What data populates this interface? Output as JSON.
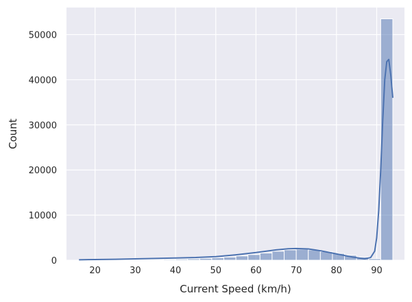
{
  "chart_data": {
    "type": "bar",
    "xlabel": "Current Speed (km/h)",
    "ylabel": "Count",
    "xlim": [
      12.9,
      96.9
    ],
    "ylim": [
      0,
      56000
    ],
    "x_ticks": [
      20,
      30,
      40,
      50,
      60,
      70,
      80,
      90
    ],
    "y_ticks": [
      0,
      10000,
      20000,
      30000,
      40000,
      50000
    ],
    "grid": true,
    "colors": {
      "background": "#eaeaf2",
      "bar_fill": "#4c72b0",
      "kde_line": "#4c72b0",
      "grid": "#ffffff"
    },
    "bins": {
      "edges": [
        16.0,
        19.0,
        22.0,
        25.0,
        28.0,
        31.0,
        34.0,
        37.0,
        40.0,
        43.0,
        46.0,
        49.0,
        52.0,
        55.0,
        58.0,
        61.0,
        64.0,
        67.0,
        70.0,
        73.0,
        76.0,
        79.0,
        82.0,
        85.0,
        88.0,
        91.0,
        94.0
      ],
      "counts": [
        50,
        40,
        60,
        80,
        100,
        130,
        160,
        200,
        250,
        320,
        420,
        550,
        700,
        950,
        1250,
        1600,
        2000,
        2300,
        2450,
        2300,
        1900,
        1500,
        1100,
        700,
        350,
        53500
      ]
    },
    "kde": {
      "x": [
        16,
        20,
        25,
        30,
        35,
        40,
        45,
        50,
        55,
        60,
        65,
        68,
        70,
        73,
        76,
        80,
        84,
        87,
        88.5,
        89.5,
        90,
        90.5,
        91,
        91.5,
        92,
        92.5,
        93,
        93.5,
        94
      ],
      "y": [
        100,
        150,
        200,
        300,
        400,
        500,
        600,
        800,
        1200,
        1700,
        2300,
        2550,
        2600,
        2500,
        2100,
        1400,
        700,
        300,
        600,
        2000,
        5000,
        11000,
        20000,
        31000,
        40000,
        44000,
        44500,
        41000,
        36000
      ]
    }
  }
}
